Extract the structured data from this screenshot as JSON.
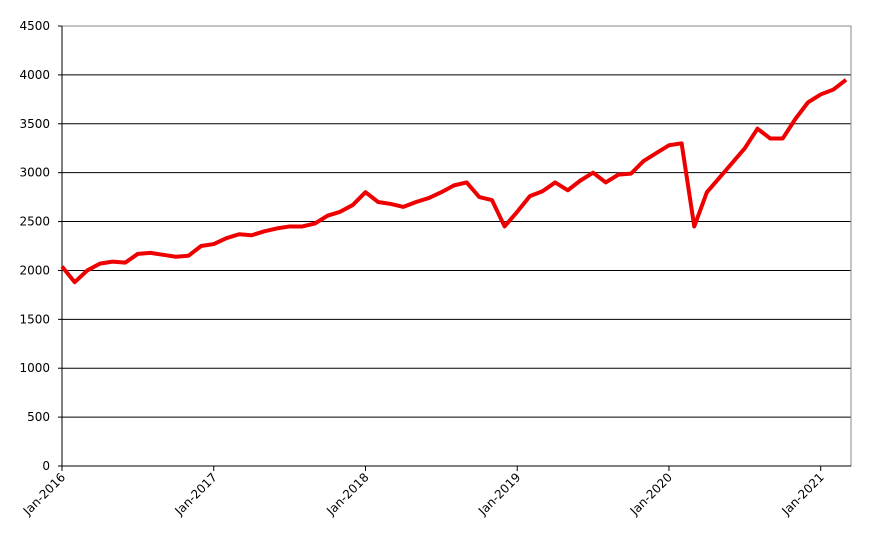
{
  "chart_data": {
    "type": "line",
    "x": [
      "2016-01",
      "2016-02",
      "2016-03",
      "2016-04",
      "2016-05",
      "2016-06",
      "2016-07",
      "2016-08",
      "2016-09",
      "2016-10",
      "2016-11",
      "2016-12",
      "2017-01",
      "2017-02",
      "2017-03",
      "2017-04",
      "2017-05",
      "2017-06",
      "2017-07",
      "2017-08",
      "2017-09",
      "2017-10",
      "2017-11",
      "2017-12",
      "2018-01",
      "2018-02",
      "2018-03",
      "2018-04",
      "2018-05",
      "2018-06",
      "2018-07",
      "2018-08",
      "2018-09",
      "2018-10",
      "2018-11",
      "2018-12",
      "2019-01",
      "2019-02",
      "2019-03",
      "2019-04",
      "2019-05",
      "2019-06",
      "2019-07",
      "2019-08",
      "2019-09",
      "2019-10",
      "2019-11",
      "2019-12",
      "2020-01",
      "2020-02",
      "2020-03",
      "2020-04",
      "2020-05",
      "2020-06",
      "2020-07",
      "2020-08",
      "2020-09",
      "2020-10",
      "2020-11",
      "2020-12",
      "2021-01",
      "2021-02",
      "2021-03"
    ],
    "series": [
      {
        "color": "#ee0000",
        "values": [
          2040,
          1880,
          2000,
          2070,
          2090,
          2080,
          2170,
          2180,
          2160,
          2140,
          2150,
          2250,
          2270,
          2330,
          2370,
          2360,
          2400,
          2430,
          2450,
          2450,
          2480,
          2560,
          2600,
          2670,
          2800,
          2700,
          2680,
          2650,
          2700,
          2740,
          2800,
          2870,
          2900,
          2750,
          2720,
          2450,
          2600,
          2760,
          2810,
          2900,
          2820,
          2920,
          3000,
          2900,
          2980,
          2990,
          3120,
          3200,
          3280,
          3300,
          2450,
          2800,
          2950,
          3100,
          3250,
          3450,
          3350,
          3350,
          3550,
          3720,
          3800,
          3850,
          3950
        ]
      }
    ],
    "xlim": [
      "2016-01",
      "2021-03"
    ],
    "xticks": [
      {
        "value": "2016-01",
        "label": "Jan-2016"
      },
      {
        "value": "2017-01",
        "label": "Jan-2017"
      },
      {
        "value": "2018-01",
        "label": "Jan-2018"
      },
      {
        "value": "2019-01",
        "label": "Jan-2019"
      },
      {
        "value": "2020-01",
        "label": "Jan-2020"
      },
      {
        "value": "2021-01",
        "label": "Jan-2021"
      }
    ],
    "ylim": [
      0,
      4500
    ],
    "yticks": [
      0,
      500,
      1000,
      1500,
      2000,
      2500,
      3000,
      3500,
      4000,
      4500
    ],
    "grid": true
  }
}
